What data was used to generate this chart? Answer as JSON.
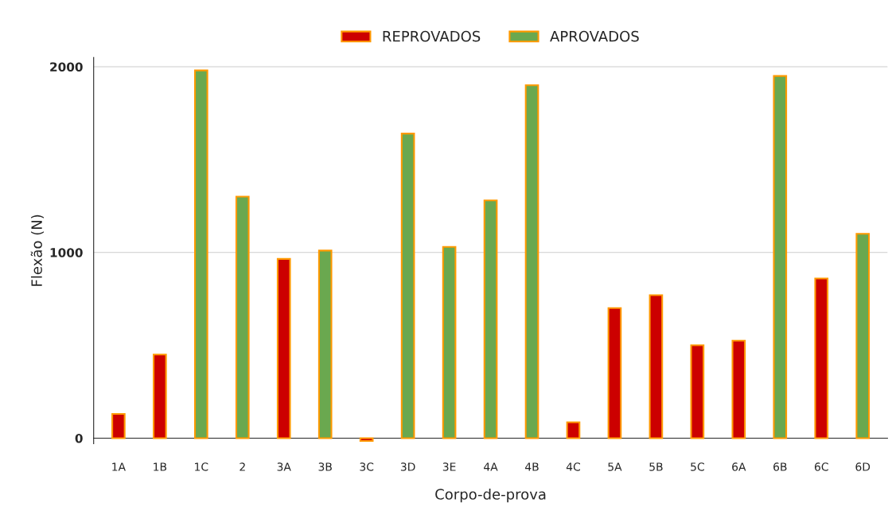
{
  "chart_data": {
    "type": "bar",
    "categories": [
      "1A",
      "1B",
      "1C",
      "2",
      "3A",
      "3B",
      "3C",
      "3D",
      "3E",
      "4A",
      "4B",
      "4C",
      "5A",
      "5B",
      "5C",
      "6A",
      "6B",
      "6C",
      "6D"
    ],
    "series": [
      {
        "name": "REPROVADOS",
        "color": "#cc0000",
        "values": [
          130,
          450,
          null,
          null,
          965,
          null,
          -15,
          null,
          null,
          null,
          null,
          85,
          700,
          770,
          500,
          525,
          null,
          860,
          null
        ]
      },
      {
        "name": "APROVADOS",
        "color": "#6aa84f",
        "values": [
          null,
          null,
          1980,
          1300,
          null,
          1010,
          null,
          1640,
          1030,
          1280,
          1900,
          null,
          null,
          null,
          null,
          null,
          1950,
          null,
          1100
        ]
      }
    ],
    "xlabel": "Corpo-de-prova",
    "ylabel": "Flexão (N)",
    "ylim": [
      -30,
      2050
    ],
    "yticks": [
      0,
      1000,
      2000
    ],
    "grid": "y",
    "legend": "top"
  }
}
